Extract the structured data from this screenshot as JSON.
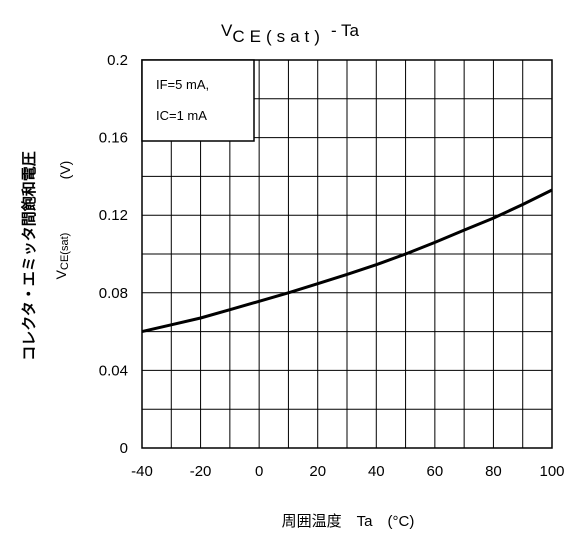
{
  "chart_data": {
    "type": "line",
    "title": {
      "main": "V",
      "sub": "CE(sat)",
      "suffix": "- Ta"
    },
    "xlabel": "周囲温度　Ta　(°C)",
    "ylabel": {
      "jp": "コレクタ・エミッタ間飽和電圧",
      "unit": "(V)",
      "sym_main": "V",
      "sym_sub": "CE(sat)"
    },
    "xlim": [
      -40,
      100
    ],
    "ylim": [
      0,
      0.2
    ],
    "xticks": [
      "-40",
      "-20",
      "0",
      "20",
      "40",
      "60",
      "80",
      "100"
    ],
    "yticks": [
      "0",
      "0.04",
      "0.08",
      "0.12",
      "0.16",
      "0.2"
    ],
    "x_tick_values": [
      -40,
      -20,
      0,
      20,
      40,
      60,
      80,
      100
    ],
    "y_tick_values": [
      0,
      0.04,
      0.08,
      0.12,
      0.16,
      0.2
    ],
    "grid": true,
    "minor_x_step": 10,
    "minor_y_step": 0.02,
    "legend_box": {
      "placement": "top-left",
      "lines": [
        "IF=5 mA,",
        "IC=1 mA"
      ]
    },
    "series": [
      {
        "x": [
          -40,
          -30,
          -20,
          -10,
          0,
          10,
          20,
          30,
          40,
          50,
          60,
          70,
          80,
          90,
          100
        ],
        "y": [
          0.06,
          0.0635,
          0.067,
          0.0713,
          0.0756,
          0.08,
          0.0847,
          0.0895,
          0.0945,
          0.1,
          0.106,
          0.1123,
          0.1185,
          0.1255,
          0.133
        ]
      }
    ]
  }
}
